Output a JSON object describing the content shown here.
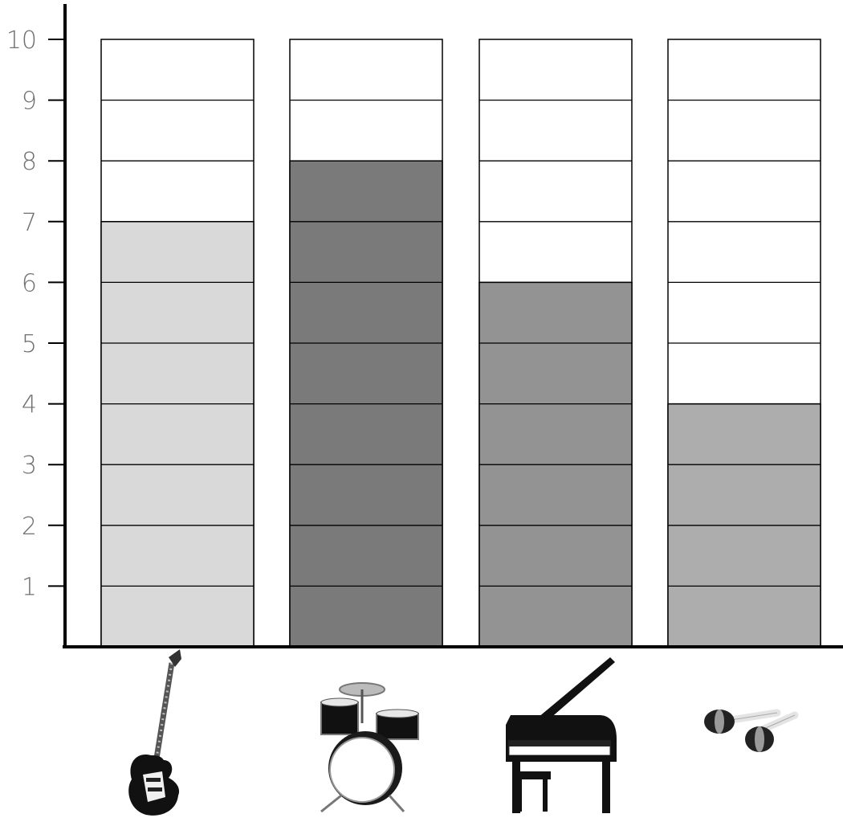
{
  "chart_data": {
    "type": "bar",
    "categories": [
      "guitar",
      "drum-kit",
      "grand-piano",
      "maracas"
    ],
    "values": [
      7,
      8,
      6,
      4
    ],
    "bar_colors": [
      "#d9d9d9",
      "#7a7a7a",
      "#939393",
      "#adadad"
    ],
    "title": "",
    "xlabel": "",
    "ylabel": "",
    "ylim": [
      0,
      10
    ],
    "yticks": [
      "1",
      "2",
      "3",
      "4",
      "5",
      "6",
      "7",
      "8",
      "9",
      "10"
    ],
    "grid": "unit cells drawn inside each bar column",
    "category_icons": [
      "guitar-icon",
      "drum-kit-icon",
      "grand-piano-icon",
      "maracas-icon"
    ]
  }
}
